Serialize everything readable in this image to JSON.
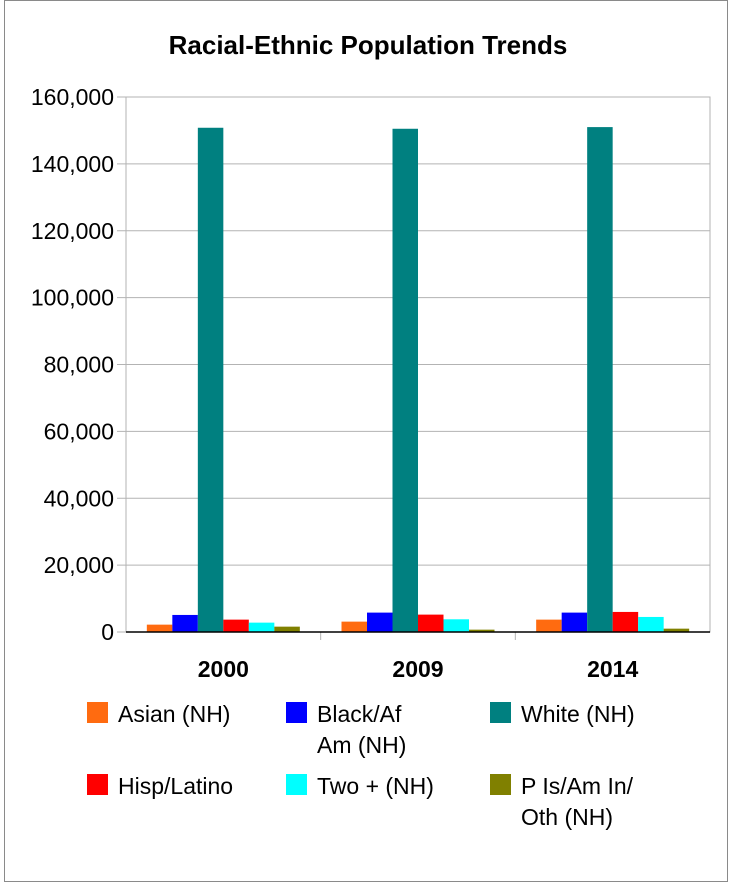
{
  "chart_data": {
    "type": "bar",
    "title": "Racial-Ethnic Population Trends",
    "xlabel": "",
    "ylabel": "",
    "categories": [
      "2000",
      "2009",
      "2014"
    ],
    "ylim": [
      0,
      160000
    ],
    "yticks": [
      0,
      20000,
      40000,
      60000,
      80000,
      100000,
      120000,
      140000,
      160000
    ],
    "ytick_labels": [
      "0",
      "20,000",
      "40,000",
      "60,000",
      "80,000",
      "100,000",
      "120,000",
      "140,000",
      "160,000"
    ],
    "grid": true,
    "legend_position": "bottom",
    "series": [
      {
        "name": "Asian (NH)",
        "legend_lines": [
          "Asian (NH)"
        ],
        "color": "#ff6b10",
        "values": [
          2200,
          3100,
          3700
        ]
      },
      {
        "name": "Black/Af Am (NH)",
        "legend_lines": [
          "Black/Af",
          "Am (NH)"
        ],
        "color": "#0000ff",
        "values": [
          5100,
          5800,
          5800
        ]
      },
      {
        "name": "White (NH)",
        "legend_lines": [
          "White (NH)"
        ],
        "color": "#008080",
        "values": [
          150800,
          150500,
          151000
        ]
      },
      {
        "name": "Hisp/Latino",
        "legend_lines": [
          "Hisp/Latino"
        ],
        "color": "#ff0000",
        "values": [
          3700,
          5200,
          6000
        ]
      },
      {
        "name": "Two + (NH)",
        "legend_lines": [
          "Two + (NH)"
        ],
        "color": "#00ffff",
        "values": [
          2800,
          3800,
          4500
        ]
      },
      {
        "name": "P Is/Am In/ Oth (NH)",
        "legend_lines": [
          "P Is/Am In/",
          "Oth (NH)"
        ],
        "color": "#808000",
        "values": [
          1600,
          700,
          1000
        ]
      }
    ]
  }
}
